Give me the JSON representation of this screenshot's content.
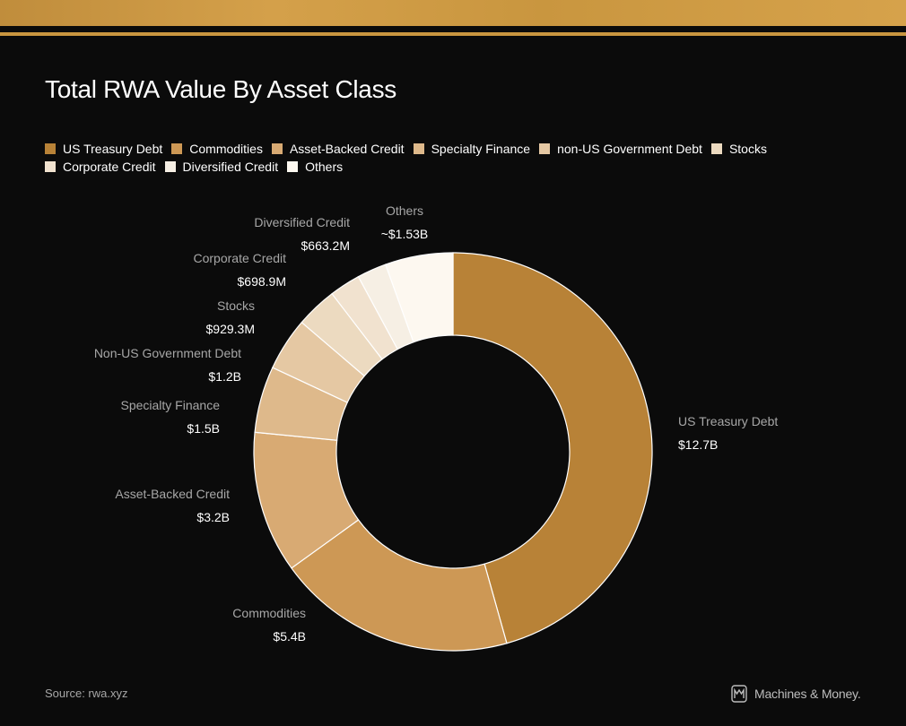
{
  "title": "Total RWA Value By Asset Class",
  "source": "Source: rwa.xyz",
  "brand": {
    "name": "Machines & Money.",
    "logo_icon": "machines-money-logo-icon"
  },
  "colors": {
    "background": "#0b0b0b",
    "accent": "#c9963f"
  },
  "chart_data": {
    "type": "pie",
    "variant": "donut",
    "title": "Total RWA Value By Asset Class",
    "unit": "USD billions",
    "legend_position": "top-left",
    "legend": [
      {
        "label": "US Treasury Debt",
        "color": "#b88237"
      },
      {
        "label": "Commodities",
        "color": "#cd9855"
      },
      {
        "label": "Asset-Backed Credit",
        "color": "#d8aa73"
      },
      {
        "label": "Specialty Finance",
        "color": "#deb98b"
      },
      {
        "label": "non-US Government Debt",
        "color": "#e5c8a3"
      },
      {
        "label": "Stocks",
        "color": "#ecdac0"
      },
      {
        "label": "Corporate Credit",
        "color": "#f1e2cf"
      },
      {
        "label": "Diversified Credit",
        "color": "#f6efe4"
      },
      {
        "label": "Others",
        "color": "#fdf8f0"
      }
    ],
    "slices": [
      {
        "name": "US Treasury Debt",
        "label": "US Treasury Debt",
        "value": 12.7,
        "value_label": "$12.7B",
        "color": "#b88237"
      },
      {
        "name": "Commodities",
        "label": "Commodities",
        "value": 5.4,
        "value_label": "$5.4B",
        "color": "#cd9855"
      },
      {
        "name": "Asset-Backed Credit",
        "label": "Asset-Backed Credit",
        "value": 3.2,
        "value_label": "$3.2B",
        "color": "#d8aa73"
      },
      {
        "name": "Specialty Finance",
        "label": "Specialty Finance",
        "value": 1.5,
        "value_label": "$1.5B",
        "color": "#deb98b"
      },
      {
        "name": "non-US Government Debt",
        "label": "Non-US Government Debt",
        "value": 1.2,
        "value_label": "$1.2B",
        "color": "#e5c8a3"
      },
      {
        "name": "Stocks",
        "label": "Stocks",
        "value": 0.9293,
        "value_label": "$929.3M",
        "color": "#ecdac0"
      },
      {
        "name": "Corporate Credit",
        "label": "Corporate Credit",
        "value": 0.6989,
        "value_label": "$698.9M",
        "color": "#f1e2cf"
      },
      {
        "name": "Diversified Credit",
        "label": "Diversified Credit",
        "value": 0.6632,
        "value_label": "$663.2M",
        "color": "#f6efe4"
      },
      {
        "name": "Others",
        "label": "Others",
        "value": 1.53,
        "value_label": "~$1.53B",
        "color": "#fdf8f0"
      }
    ]
  }
}
